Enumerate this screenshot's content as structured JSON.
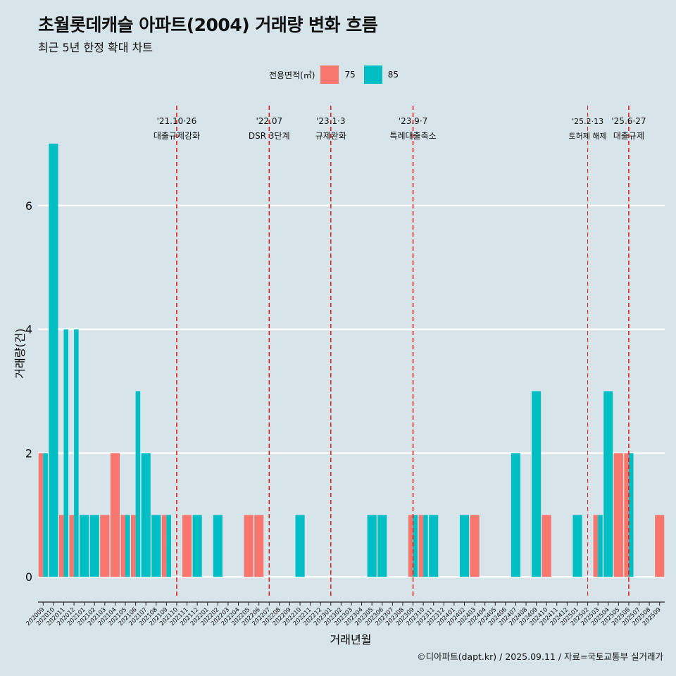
{
  "title": "초월롯데캐슬 아파트(2004) 거래량 변화 흐름",
  "subtitle": "최근 5년 한정 확대 차트",
  "caption": "©디아파트(dapt.kr) / 2025.09.11 / 자료=국토교통부 실거래가",
  "legend": {
    "title": "전용면적(㎡)",
    "items": [
      {
        "label": "75",
        "color": "#f8766d"
      },
      {
        "label": "85",
        "color": "#00bfc4"
      }
    ]
  },
  "chart_data": {
    "type": "bar",
    "xlabel": "거래년월",
    "ylabel": "거래량(건)",
    "ylim": [
      -0.35,
      7.5
    ],
    "yticks": [
      0,
      2,
      4,
      6
    ],
    "grid": true,
    "legend_position": "top",
    "categories": [
      "202009",
      "202010",
      "202011",
      "202012",
      "202101",
      "202102",
      "202103",
      "202104",
      "202105",
      "202106",
      "202107",
      "202108",
      "202109",
      "202110",
      "202111",
      "202112",
      "202201",
      "202202",
      "202203",
      "202204",
      "202205",
      "202206",
      "202207",
      "202208",
      "202209",
      "202210",
      "202211",
      "202212",
      "202301",
      "202302",
      "202303",
      "202304",
      "202305",
      "202306",
      "202307",
      "202308",
      "202309",
      "202310",
      "202311",
      "202312",
      "202401",
      "202402",
      "202403",
      "202404",
      "202405",
      "202406",
      "202407",
      "202408",
      "202409",
      "202410",
      "202411",
      "202412",
      "202501",
      "202502",
      "202503",
      "202504",
      "202505",
      "202506",
      "202507",
      "202508",
      "202509"
    ],
    "series": [
      {
        "name": "75",
        "color": "#f8766d",
        "values": [
          2,
          0,
          1,
          1,
          0,
          0,
          1,
          2,
          1,
          1,
          0,
          0,
          1,
          0,
          1,
          0,
          0,
          0,
          0,
          0,
          1,
          1,
          0,
          0,
          0,
          0,
          0,
          0,
          0,
          0,
          0,
          0,
          0,
          0,
          0,
          0,
          1,
          1,
          0,
          0,
          0,
          0,
          1,
          0,
          0,
          0,
          0,
          0,
          0,
          1,
          0,
          0,
          0,
          0,
          1,
          0,
          2,
          2,
          0,
          0,
          1
        ]
      },
      {
        "name": "85",
        "color": "#00bfc4",
        "values": [
          2,
          7,
          4,
          4,
          1,
          1,
          0,
          0,
          1,
          3,
          2,
          1,
          1,
          0,
          0,
          1,
          0,
          1,
          0,
          0,
          0,
          0,
          0,
          0,
          0,
          1,
          0,
          0,
          0,
          0,
          0,
          0,
          1,
          1,
          0,
          0,
          1,
          1,
          1,
          0,
          0,
          1,
          0,
          0,
          0,
          0,
          2,
          0,
          3,
          0,
          0,
          0,
          1,
          0,
          1,
          3,
          0,
          2,
          0,
          0,
          0
        ]
      }
    ],
    "events": [
      {
        "at": "202110",
        "date": "'21.10·26",
        "label": "대출규제강화"
      },
      {
        "at": "202207",
        "date": "'22.07",
        "label": "DSR 3단계"
      },
      {
        "at": "202301",
        "date": "'23.1·3",
        "label": "규제완화"
      },
      {
        "at": "202309",
        "date": "'23.9·7",
        "label": "특례대출축소"
      },
      {
        "at": "202502",
        "date": "'25.2·13",
        "label": "토허제 해제"
      },
      {
        "at": "202506",
        "date": "'25.6·27",
        "label": "대출규제"
      }
    ]
  }
}
